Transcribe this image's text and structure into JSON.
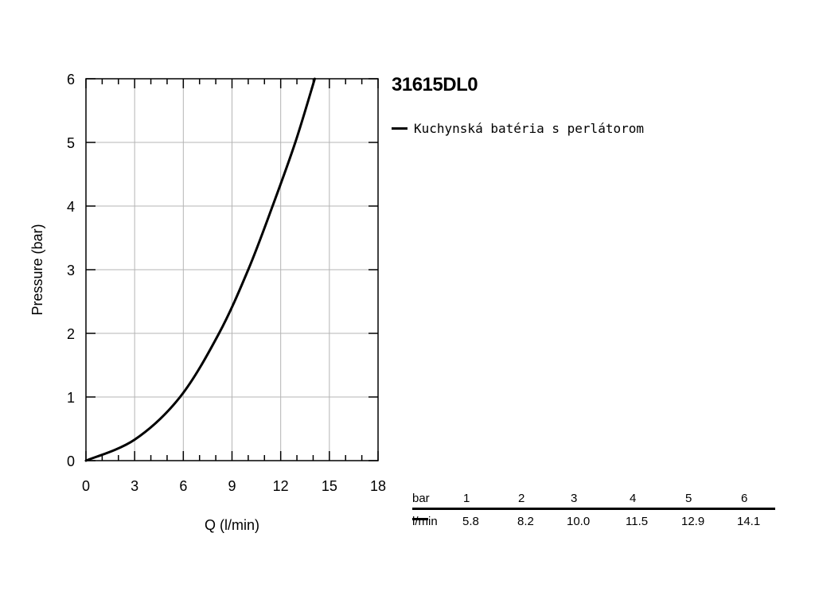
{
  "chart_data": {
    "type": "line",
    "title": "31615DL0",
    "xlabel": "Q (l/min)",
    "ylabel": "Pressure (bar)",
    "xlim": [
      0,
      18
    ],
    "ylim": [
      0,
      6
    ],
    "x_ticks": [
      0,
      3,
      6,
      9,
      12,
      15,
      18
    ],
    "y_ticks": [
      0,
      1,
      2,
      3,
      4,
      5,
      6
    ],
    "grid": true,
    "legend_position": "top-right",
    "series": [
      {
        "name": "Kuchynská batéria s perlátorom",
        "color": "#000000",
        "x": [
          0,
          3.0,
          5.8,
          8.2,
          10.0,
          11.5,
          12.9,
          14.1
        ],
        "y": [
          0,
          0.33,
          1,
          2,
          3,
          4,
          5,
          6
        ]
      }
    ],
    "table": {
      "pressure_unit": "bar",
      "flow_unit": "l/min",
      "pressures": [
        "1",
        "2",
        "3",
        "4",
        "5",
        "6"
      ],
      "flows": [
        "5.8",
        "8.2",
        "10.0",
        "11.5",
        "12.9",
        "14.1"
      ]
    }
  }
}
